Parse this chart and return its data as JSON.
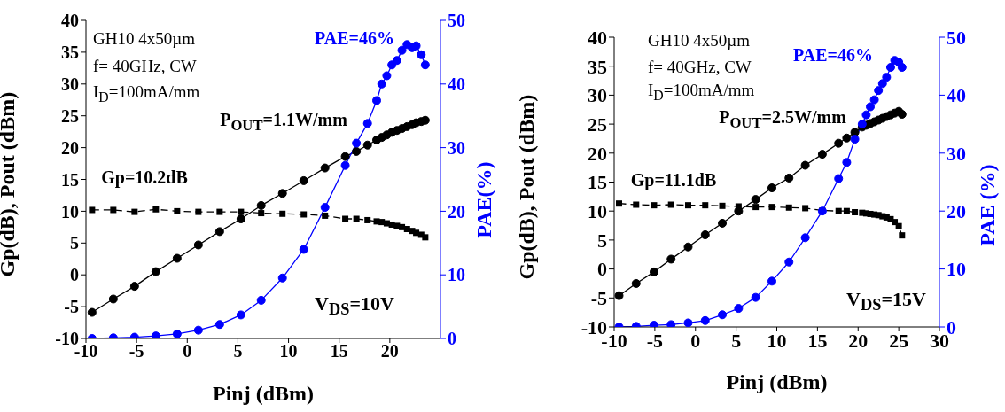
{
  "chart_data": [
    {
      "type": "line",
      "xlabel": "Pinj (dBm)",
      "ylabel": "Gp(dB), Pout (dBm)",
      "y2label": "PAE(%)",
      "x": [
        -9.4,
        -7.3,
        -5.2,
        -3.1,
        -1.0,
        1.1,
        3.2,
        5.3,
        7.3,
        9.4,
        11.5,
        13.6,
        15.6,
        16.7,
        17.8,
        18.7,
        19.2,
        19.7,
        20.2,
        20.7,
        21.2,
        21.7,
        22.2,
        22.6,
        23.1,
        23.5
      ],
      "series": [
        {
          "color": "#000000",
          "marker": "circle",
          "line_style": "solid",
          "values": [
            -5.9,
            -3.8,
            -1.8,
            0.5,
            2.6,
            4.7,
            6.8,
            8.8,
            10.9,
            12.8,
            14.8,
            16.8,
            18.6,
            19.4,
            20.4,
            21.2,
            21.6,
            22.0,
            22.4,
            22.7,
            23.0,
            23.3,
            23.6,
            23.9,
            24.1,
            24.3
          ]
        },
        {
          "color": "#000000",
          "marker": "square",
          "line_style": "dashed",
          "values": [
            10.2,
            10.2,
            9.9,
            10.3,
            10.0,
            9.9,
            9.9,
            9.9,
            9.7,
            9.6,
            9.5,
            9.3,
            8.8,
            8.8,
            8.6,
            8.4,
            8.3,
            8.1,
            7.9,
            7.7,
            7.5,
            7.2,
            6.9,
            6.6,
            6.3,
            5.9
          ]
        },
        {
          "color": "#0000ff",
          "marker": "circle",
          "line_style": "solid",
          "axis": "y2",
          "values": [
            0.0,
            0.1,
            0.2,
            0.4,
            0.7,
            1.3,
            2.2,
            3.7,
            6.0,
            9.5,
            14.0,
            20.6,
            27.2,
            30.7,
            33.8,
            37.4,
            40.0,
            41.3,
            43.0,
            43.7,
            45.3,
            46.2,
            45.7,
            46.0,
            44.6,
            43.0
          ]
        }
      ],
      "xlim": [
        -10,
        25
      ],
      "xticks": [
        -10,
        -5,
        0,
        5,
        10,
        15,
        20
      ],
      "ylim": [
        -10,
        40
      ],
      "yticks": [
        -10,
        -5,
        0,
        5,
        10,
        15,
        20,
        25,
        30,
        35,
        40
      ],
      "y2lim": [
        0,
        50
      ],
      "y2ticks": [
        0,
        10,
        20,
        30,
        40,
        50
      ],
      "grid": false,
      "legend": false,
      "annotations": [
        "GH10 4x50µm",
        "f= 40GHz, CW",
        "I$_{D}$=100mA/mm",
        "V$_{DS}$=10V",
        "PAE=46%",
        "P$_{OUT}$=1.1W/mm",
        "Gp=10.2dB"
      ]
    },
    {
      "type": "line",
      "xlabel": "Pinj (dBm)",
      "ylabel": "Gp(dB), Pout (dBm)",
      "y2label": "PAE (%)",
      "x": [
        -9.4,
        -7.3,
        -5.1,
        -3.0,
        -0.9,
        1.2,
        3.3,
        5.3,
        7.4,
        9.4,
        11.5,
        13.5,
        15.6,
        17.6,
        18.6,
        19.6,
        20.5,
        21.0,
        21.5,
        22.0,
        22.5,
        23.0,
        23.5,
        24.0,
        24.5,
        25.0,
        25.4
      ],
      "series": [
        {
          "color": "#000000",
          "marker": "circle",
          "line_style": "solid",
          "values": [
            -4.6,
            -2.5,
            -0.5,
            1.7,
            3.8,
            5.9,
            7.9,
            10.0,
            12.0,
            14.0,
            15.7,
            17.9,
            19.8,
            21.7,
            22.6,
            23.6,
            24.5,
            24.8,
            25.1,
            25.4,
            25.7,
            26.0,
            26.3,
            26.6,
            26.9,
            27.2,
            26.7
          ]
        },
        {
          "color": "#000000",
          "marker": "square",
          "line_style": "dashed",
          "values": [
            11.3,
            11.1,
            11.0,
            11.1,
            11.0,
            11.0,
            10.9,
            10.8,
            10.7,
            10.7,
            10.6,
            10.5,
            10.1,
            10.0,
            10.0,
            9.8,
            9.7,
            9.6,
            9.5,
            9.4,
            9.3,
            9.1,
            8.9,
            8.6,
            8.1,
            7.4,
            5.8
          ]
        },
        {
          "color": "#0000ff",
          "marker": "circle",
          "line_style": "solid",
          "axis": "y2",
          "values": [
            0.0,
            0.1,
            0.3,
            0.4,
            0.7,
            1.1,
            2.1,
            3.2,
            5.1,
            7.9,
            11.2,
            15.4,
            20.0,
            25.6,
            28.4,
            32.4,
            35.0,
            36.6,
            38.0,
            39.2,
            40.8,
            42.0,
            43.1,
            44.8,
            46.0,
            45.7,
            44.8
          ]
        }
      ],
      "xlim": [
        -10,
        30
      ],
      "xticks": [
        -10,
        -5,
        0,
        5,
        10,
        15,
        20,
        25,
        30
      ],
      "ylim": [
        -10,
        40
      ],
      "yticks": [
        -10,
        -5,
        0,
        5,
        10,
        15,
        20,
        25,
        30,
        35,
        40
      ],
      "y2lim": [
        0,
        50
      ],
      "y2ticks": [
        0,
        10,
        20,
        30,
        40,
        50
      ],
      "grid": false,
      "legend": false,
      "annotations": [
        "GH10 4x50µm",
        "f= 40GHz, CW",
        "I$_{D}$=100mA/mm",
        "V$_{DS}$=15V",
        "PAE=46%",
        "P$_{OUT}$=2.5W/mm",
        "Gp=11.1dB"
      ]
    }
  ]
}
